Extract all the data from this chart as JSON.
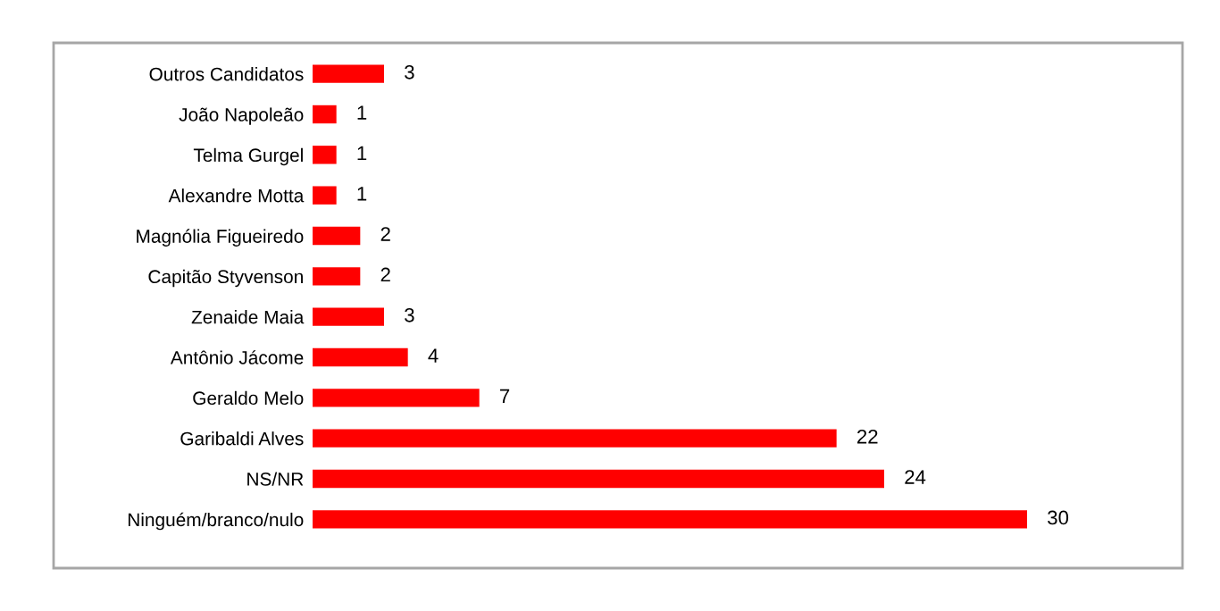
{
  "chart_data": {
    "type": "bar",
    "orientation": "horizontal",
    "categories": [
      "Outros Candidatos",
      "João Napoleão",
      "Telma Gurgel",
      "Alexandre Motta",
      "Magnólia Figueiredo",
      "Capitão Styvenson",
      "Zenaide Maia",
      "Antônio Jácome",
      "Geraldo Melo",
      "Garibaldi Alves",
      "NS/NR",
      "Ninguém/branco/nulo"
    ],
    "values": [
      3,
      1,
      1,
      1,
      2,
      2,
      3,
      4,
      7,
      22,
      24,
      30
    ],
    "color": "#ff0000",
    "tick_labels": "y",
    "grid": false,
    "legend": false,
    "data_labels": true
  }
}
